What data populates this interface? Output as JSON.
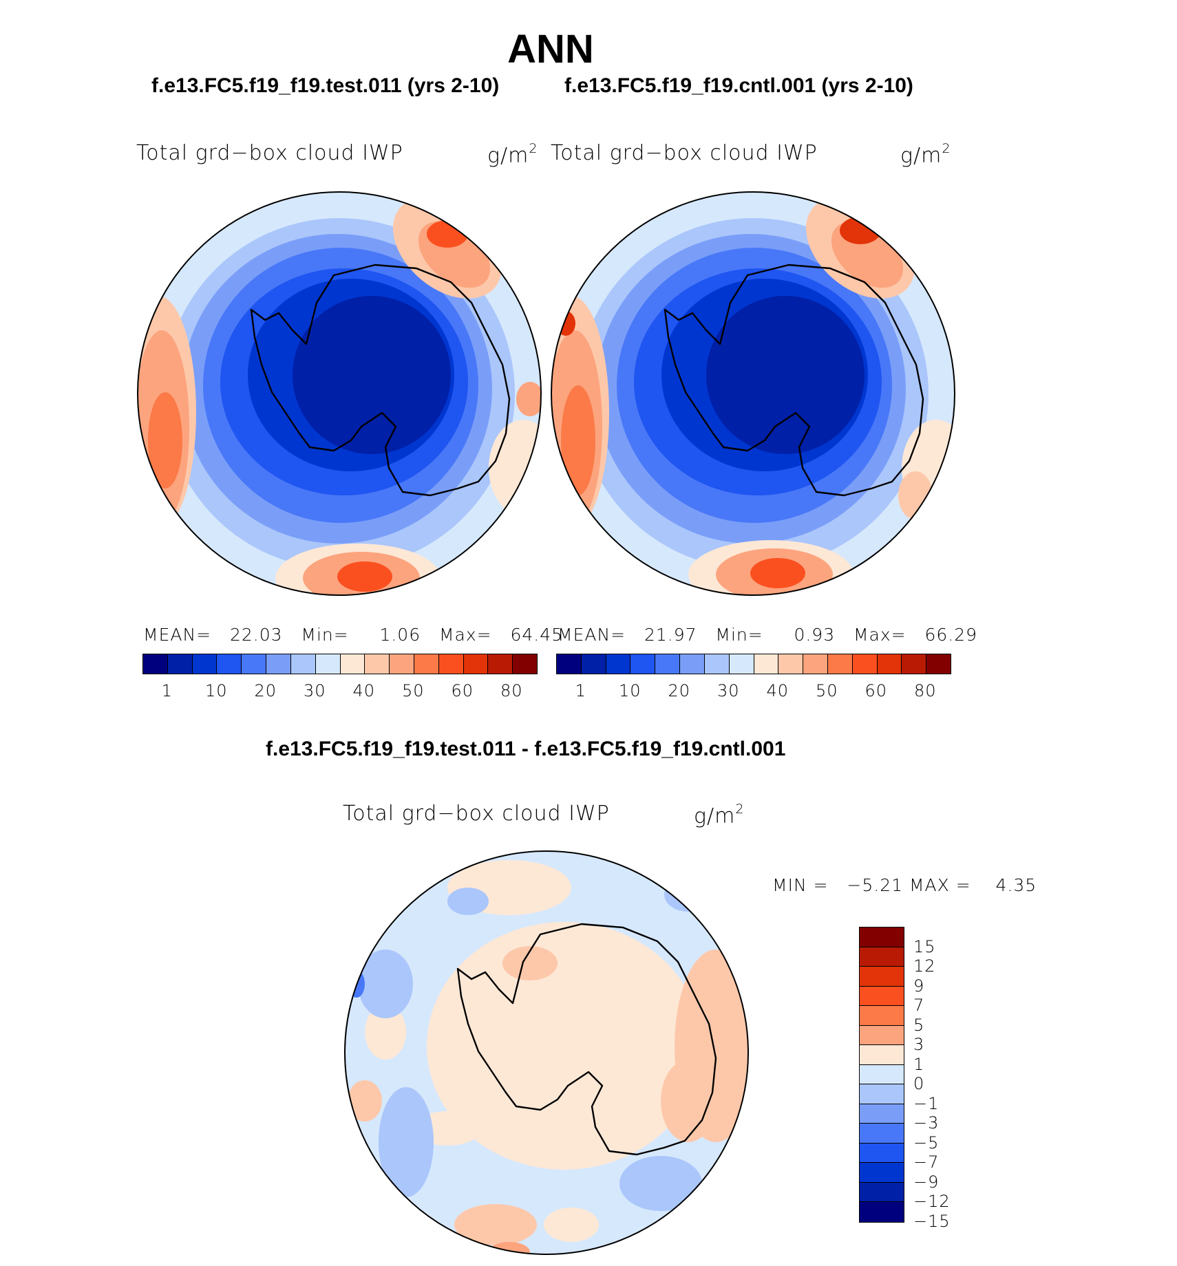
{
  "header": {
    "title": "ANN",
    "test_case": "f.e13.FC5.f19_f19.test.011 (yrs 2-10)",
    "control_case": "f.e13.FC5.f19_f19.cntl.001 (yrs 2-10)",
    "diff_title": "f.e13.FC5.f19_f19.test.011 - f.e13.FC5.f19_f19.cntl.001"
  },
  "panels": {
    "test": {
      "variable": "Total grd−box cloud IWP",
      "unit_base": "g/m",
      "unit_exp": "2",
      "mean_label": "MEAN=",
      "mean": "22.03",
      "min_label": "Min=",
      "min": "1.06",
      "max_label": "Max=",
      "max": "64.45"
    },
    "control": {
      "variable": "Total grd−box cloud IWP",
      "unit_base": "g/m",
      "unit_exp": "2",
      "mean_label": "MEAN=",
      "mean": "21.97",
      "min_label": "Min=",
      "min": "0.93",
      "max_label": "Max=",
      "max": "66.29"
    },
    "difference": {
      "variable": "Total grd−box cloud IWP",
      "unit_base": "g/m",
      "unit_exp": "2",
      "min_label": "MIN =",
      "min": "−5.21",
      "max_label": "MAX =",
      "max": "4.35"
    }
  },
  "chart_data": [
    {
      "type": "heatmap",
      "projection": "south polar stereographic",
      "title": "Total grd−box cloud IWP",
      "units": "g/m2",
      "case": "f.e13.FC5.f19_f19.test.011 (yrs 2-10)",
      "stats": {
        "mean": 22.03,
        "min": 1.06,
        "max": 64.45
      },
      "colorbar_ticks": [
        "1",
        "10",
        "20",
        "30",
        "40",
        "50",
        "60",
        "80"
      ],
      "colors": [
        "#00007f",
        "#0020a8",
        "#0036d0",
        "#1f55f0",
        "#4878f8",
        "#7a9ef8",
        "#aac6fb",
        "#d6e8fc",
        "#fde8d6",
        "#fdc8aa",
        "#fca47e",
        "#fb7a48",
        "#fa5020",
        "#e23408",
        "#b81a04",
        "#820000"
      ]
    },
    {
      "type": "heatmap",
      "projection": "south polar stereographic",
      "title": "Total grd−box cloud IWP",
      "units": "g/m2",
      "case": "f.e13.FC5.f19_f19.cntl.001 (yrs 2-10)",
      "stats": {
        "mean": 21.97,
        "min": 0.93,
        "max": 66.29
      },
      "colorbar_ticks": [
        "1",
        "10",
        "20",
        "30",
        "40",
        "50",
        "60",
        "80"
      ],
      "colors": [
        "#00007f",
        "#0020a8",
        "#0036d0",
        "#1f55f0",
        "#4878f8",
        "#7a9ef8",
        "#aac6fb",
        "#d6e8fc",
        "#fde8d6",
        "#fdc8aa",
        "#fca47e",
        "#fb7a48",
        "#fa5020",
        "#e23408",
        "#b81a04",
        "#820000"
      ]
    },
    {
      "type": "heatmap",
      "projection": "south polar stereographic",
      "title": "Total grd−box cloud IWP",
      "units": "g/m2",
      "case": "f.e13.FC5.f19_f19.test.011 - f.e13.FC5.f19_f19.cntl.001",
      "stats": {
        "min": -5.21,
        "max": 4.35
      },
      "colorbar_ticks": [
        "15",
        "12",
        "9",
        "7",
        "5",
        "3",
        "1",
        "0",
        "−1",
        "−3",
        "−5",
        "−7",
        "−9",
        "−12",
        "−15"
      ],
      "colors": [
        "#820000",
        "#b81a04",
        "#e23408",
        "#fa5020",
        "#fb7a48",
        "#fca47e",
        "#fde8d6",
        "#d6e8fc",
        "#aac6fb",
        "#7a9ef8",
        "#4878f8",
        "#1f55f0",
        "#0036d0",
        "#0020a8",
        "#00007f"
      ]
    }
  ]
}
